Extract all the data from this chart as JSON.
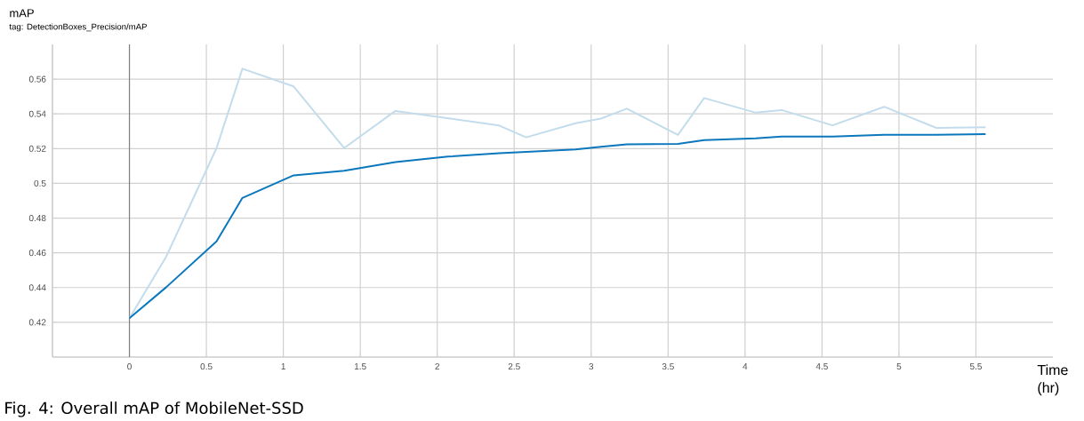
{
  "chart_data": {
    "type": "line",
    "title": "mAP",
    "subtitle": "tag: DetectionBoxes_Precision/mAP",
    "xlabel": "Time (hr)",
    "annotations": [
      "Fig. 4: Overall mAP of MobileNet-SSD"
    ],
    "series": [
      {
        "color": "#c3dcec",
        "x": [
          0,
          0.239,
          0.566,
          0.734,
          1.067,
          1.395,
          1.728,
          2.402,
          2.578,
          2.899,
          3.064,
          3.232,
          3.564,
          3.734,
          4.069,
          4.237,
          4.569,
          4.904,
          5.243,
          5.563
        ],
        "values": [
          0.4224,
          0.4578,
          0.5203,
          0.566,
          0.5558,
          0.5203,
          0.5417,
          0.5333,
          0.5265,
          0.5346,
          0.5373,
          0.543,
          0.5279,
          0.5491,
          0.5407,
          0.5422,
          0.5334,
          0.5441,
          0.5319,
          0.5323
        ]
      },
      {
        "color": "#0b77bd",
        "x": [
          0,
          0.239,
          0.566,
          0.734,
          1.067,
          1.395,
          1.728,
          2.07,
          2.402,
          2.578,
          2.899,
          3.064,
          3.232,
          3.564,
          3.734,
          4.069,
          4.237,
          4.569,
          4.904,
          5.243,
          5.563
        ],
        "values": [
          0.4224,
          0.4402,
          0.4666,
          0.4916,
          0.5046,
          0.5072,
          0.5122,
          0.5154,
          0.5173,
          0.5181,
          0.5195,
          0.521,
          0.5225,
          0.5227,
          0.5249,
          0.5259,
          0.5269,
          0.527,
          0.5279,
          0.5279,
          0.5283
        ]
      }
    ],
    "xlim": [
      -0.5,
      6
    ],
    "ylim": [
      0.4,
      0.58
    ],
    "xticks": [
      0,
      0.5,
      1,
      1.5,
      2,
      2.5,
      3,
      3.5,
      4,
      4.5,
      5,
      5.5
    ],
    "yticks": [
      0.42,
      0.44,
      0.46,
      0.48,
      0.5,
      0.52,
      0.54,
      0.56
    ],
    "ref_lines": [
      {
        "axis": "x",
        "value": 0,
        "color": "#808080"
      }
    ],
    "grid": true,
    "line_style": "solid"
  }
}
